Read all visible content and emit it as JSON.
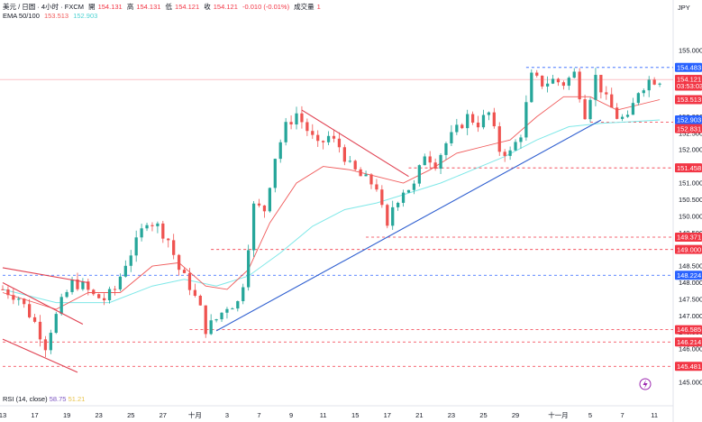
{
  "header": {
    "symbol_line": "美元 / 日圆 · 4小时 · FXCM",
    "open_label": "開",
    "open": "154.131",
    "high_label": "高",
    "high": "154.131",
    "low_label": "低",
    "low": "154.121",
    "close_label": "收",
    "close": "154.121",
    "change": "-0.010 (-0.01%)",
    "volume_label": "成交量",
    "volume": "1",
    "ema_label": "EMA 50/100",
    "ema50": "153.513",
    "ema100": "152.903"
  },
  "rsi": {
    "label": "RSI (14, close)",
    "value": "58.75",
    "ma": "51.21"
  },
  "currency": "JPY",
  "colors": {
    "up": "#26a69a",
    "down": "#ef5350",
    "ema50": "#f05a5a",
    "ema100": "#7fe8e8",
    "trend_blue": "#2f5fd0",
    "resist_red": "#e04050",
    "level_red": "#f23645",
    "level_blue": "#2962ff"
  },
  "chart_data": {
    "type": "candlestick",
    "ylim": [
      144.7,
      155.7
    ],
    "x_range": [
      0,
      124
    ],
    "y_ticks": [
      "155.000",
      "154.500",
      "153.000",
      "152.500",
      "152.000",
      "151.500",
      "151.000",
      "150.500",
      "150.000",
      "149.500",
      "148.500",
      "148.000",
      "147.500",
      "147.000",
      "146.500",
      "146.000",
      "145.000"
    ],
    "x_ticks": [
      {
        "label": "13",
        "x": 0
      },
      {
        "label": "17",
        "x": 6
      },
      {
        "label": "19",
        "x": 12
      },
      {
        "label": "23",
        "x": 18
      },
      {
        "label": "25",
        "x": 24
      },
      {
        "label": "27",
        "x": 30
      },
      {
        "label": "十月",
        "x": 36
      },
      {
        "label": "3",
        "x": 42
      },
      {
        "label": "7",
        "x": 48
      },
      {
        "label": "9",
        "x": 54
      },
      {
        "label": "11",
        "x": 60
      },
      {
        "label": "15",
        "x": 66
      },
      {
        "label": "17",
        "x": 72
      },
      {
        "label": "21",
        "x": 78
      },
      {
        "label": "23",
        "x": 84
      },
      {
        "label": "25",
        "x": 90
      },
      {
        "label": "29",
        "x": 96
      },
      {
        "label": "十一月",
        "x": 104
      },
      {
        "label": "5",
        "x": 110
      },
      {
        "label": "7",
        "x": 116
      },
      {
        "label": "11",
        "x": 122
      }
    ],
    "price_tags": [
      {
        "label": "154.483",
        "value": 154.483,
        "color": "#2962ff"
      },
      {
        "label": "USDJPY",
        "value": 154.12,
        "color": "#f23645"
      },
      {
        "label": "154.121",
        "value": 154.121,
        "color": "#f23645"
      },
      {
        "label": "03:53:03",
        "value": 153.92,
        "color": "#f23645"
      },
      {
        "label": "153.513",
        "value": 153.513,
        "color": "#f23645"
      },
      {
        "label": "152.903",
        "value": 152.903,
        "color": "#2962ff"
      },
      {
        "label": "152.831",
        "value": 152.64,
        "color": "#f23645"
      },
      {
        "label": "151.458",
        "value": 151.458,
        "color": "#f23645"
      },
      {
        "label": "149.371",
        "value": 149.371,
        "color": "#f23645"
      },
      {
        "label": "149.000",
        "value": 149.0,
        "color": "#f23645"
      },
      {
        "label": "148.224",
        "value": 148.224,
        "color": "#2962ff"
      },
      {
        "label": "146.585",
        "value": 146.585,
        "color": "#f23645"
      },
      {
        "label": "146.214",
        "value": 146.214,
        "color": "#f23645"
      },
      {
        "label": "145.481",
        "value": 145.481,
        "color": "#f23645"
      }
    ],
    "levels": [
      {
        "value": 154.483,
        "from": 98,
        "color": "#2962ff"
      },
      {
        "value": 152.831,
        "from": 110,
        "color": "#f23645"
      },
      {
        "value": 151.458,
        "from": 76,
        "color": "#f23645"
      },
      {
        "value": 149.371,
        "from": 68,
        "color": "#f23645"
      },
      {
        "value": 149.0,
        "from": 39,
        "color": "#f23645"
      },
      {
        "value": 148.224,
        "from": 0,
        "color": "#2962ff"
      },
      {
        "value": 146.585,
        "from": 35,
        "color": "#f23645"
      },
      {
        "value": 146.214,
        "from": 0,
        "color": "#f23645"
      },
      {
        "value": 145.481,
        "from": 0,
        "color": "#f23645"
      }
    ],
    "trendlines": [
      {
        "x1": 40,
        "y1": 146.55,
        "x2": 112,
        "y2": 152.9,
        "color": "#2f5fd0"
      },
      {
        "x1": 56,
        "y1": 153.2,
        "x2": 76,
        "y2": 151.2,
        "color": "#e04050"
      },
      {
        "x1": 0,
        "y1": 148.45,
        "x2": 16,
        "y2": 148.0,
        "color": "#e04050"
      },
      {
        "x1": 0,
        "y1": 148.0,
        "x2": 15,
        "y2": 146.75,
        "color": "#e04050"
      },
      {
        "x1": 0,
        "y1": 146.3,
        "x2": 14,
        "y2": 145.3,
        "color": "#e04050"
      }
    ],
    "anchors": [
      [
        0,
        147.8
      ],
      [
        3,
        147.55
      ],
      [
        6,
        146.8
      ],
      [
        8,
        146.1
      ],
      [
        9,
        146.6
      ],
      [
        11,
        147.4
      ],
      [
        13,
        148.0
      ],
      [
        15,
        147.9
      ],
      [
        17,
        147.6
      ],
      [
        19,
        147.5
      ],
      [
        21,
        147.8
      ],
      [
        23,
        148.6
      ],
      [
        25,
        149.2
      ],
      [
        27,
        149.9
      ],
      [
        29,
        149.7
      ],
      [
        31,
        149.3
      ],
      [
        33,
        148.4
      ],
      [
        35,
        147.9
      ],
      [
        37,
        147.2
      ],
      [
        38,
        146.6
      ],
      [
        40,
        146.9
      ],
      [
        42,
        147.3
      ],
      [
        44,
        147.4
      ],
      [
        45,
        148.0
      ],
      [
        47,
        150.3
      ],
      [
        49,
        150.2
      ],
      [
        51,
        151.8
      ],
      [
        53,
        152.7
      ],
      [
        55,
        153.1
      ],
      [
        57,
        152.6
      ],
      [
        59,
        152.1
      ],
      [
        61,
        152.4
      ],
      [
        63,
        152.1
      ],
      [
        65,
        151.5
      ],
      [
        67,
        151.2
      ],
      [
        70,
        150.9
      ],
      [
        71,
        150.2
      ],
      [
        72,
        149.6
      ],
      [
        73,
        150.3
      ],
      [
        75,
        150.8
      ],
      [
        77,
        150.9
      ],
      [
        79,
        151.9
      ],
      [
        81,
        151.6
      ],
      [
        83,
        152.2
      ],
      [
        85,
        152.6
      ],
      [
        87,
        153.0
      ],
      [
        89,
        152.8
      ],
      [
        91,
        153.1
      ],
      [
        93,
        152.0
      ],
      [
        95,
        151.9
      ],
      [
        97,
        152.5
      ],
      [
        99,
        154.2
      ],
      [
        101,
        154.0
      ],
      [
        103,
        154.1
      ],
      [
        105,
        154.0
      ],
      [
        107,
        154.3
      ],
      [
        109,
        153.1
      ],
      [
        111,
        154.2
      ],
      [
        113,
        153.5
      ],
      [
        115,
        153.0
      ],
      [
        117,
        152.9
      ],
      [
        119,
        153.8
      ],
      [
        121,
        154.1
      ],
      [
        123,
        154.121
      ]
    ],
    "ema50": [
      [
        0,
        147.7
      ],
      [
        10,
        147.2
      ],
      [
        16,
        147.7
      ],
      [
        22,
        147.7
      ],
      [
        28,
        148.5
      ],
      [
        33,
        148.6
      ],
      [
        38,
        147.9
      ],
      [
        42,
        147.8
      ],
      [
        46,
        148.4
      ],
      [
        50,
        149.8
      ],
      [
        55,
        151.0
      ],
      [
        60,
        151.5
      ],
      [
        65,
        151.4
      ],
      [
        70,
        151.2
      ],
      [
        75,
        151.0
      ],
      [
        80,
        151.4
      ],
      [
        85,
        151.9
      ],
      [
        90,
        152.1
      ],
      [
        95,
        152.3
      ],
      [
        100,
        153.0
      ],
      [
        105,
        153.6
      ],
      [
        110,
        153.6
      ],
      [
        115,
        153.2
      ],
      [
        123,
        153.513
      ]
    ],
    "ema100": [
      [
        0,
        147.8
      ],
      [
        10,
        147.4
      ],
      [
        20,
        147.4
      ],
      [
        28,
        147.9
      ],
      [
        34,
        148.1
      ],
      [
        40,
        147.9
      ],
      [
        46,
        148.2
      ],
      [
        52,
        148.9
      ],
      [
        58,
        149.7
      ],
      [
        64,
        150.2
      ],
      [
        70,
        150.4
      ],
      [
        76,
        150.7
      ],
      [
        82,
        151.0
      ],
      [
        88,
        151.4
      ],
      [
        94,
        151.8
      ],
      [
        100,
        152.3
      ],
      [
        106,
        152.7
      ],
      [
        112,
        152.8
      ],
      [
        118,
        152.85
      ],
      [
        123,
        152.903
      ]
    ]
  }
}
